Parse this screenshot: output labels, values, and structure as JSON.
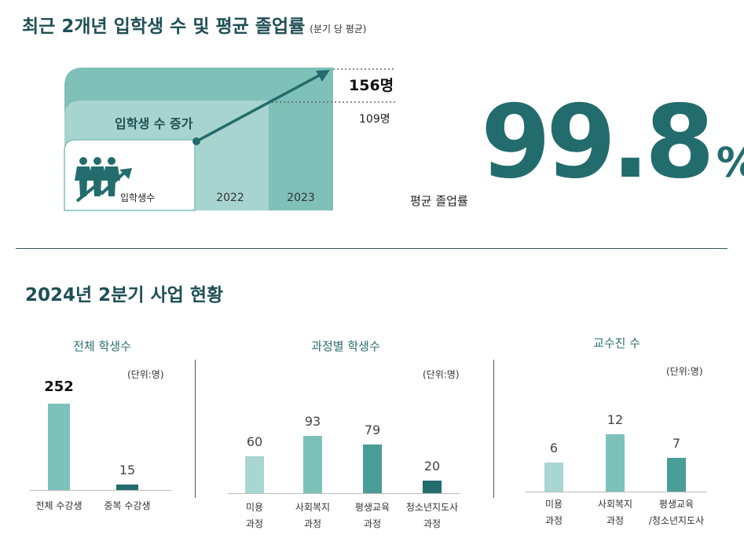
{
  "header": {
    "title": "최근 2개년 입학생 수 및 평균 졸업률",
    "subtitle": "(분기 당 평균)"
  },
  "enrollment": {
    "increase_label": "입학생 수 증가",
    "icon_label": "입학생수",
    "years": [
      "2022",
      "2023"
    ],
    "values": [
      "109명",
      "156명"
    ],
    "chart_data": {
      "type": "area",
      "categories": [
        "2022",
        "2023"
      ],
      "values": [
        109,
        156
      ],
      "title": "입학생 수 증가"
    }
  },
  "graduation": {
    "label": "평균 졸업률",
    "value": "99.8",
    "unit": "%"
  },
  "section2": {
    "title": "2024년 2분기 사업 현황"
  },
  "colors": {
    "light": "#a9d6d2",
    "mid": "#7cc2bb",
    "dark": "#4a9e97",
    "darkest": "#236c6d"
  },
  "panels": [
    {
      "title": "전체 학생수",
      "unit": "(단위:명)",
      "chart_data": {
        "type": "bar",
        "categories": [
          "전체 수강생",
          "중복 수강생"
        ],
        "values": [
          252,
          15
        ],
        "ylim": [
          0,
          252
        ]
      }
    },
    {
      "title": "과정별 학생수",
      "unit": "(단위:명)",
      "chart_data": {
        "type": "bar",
        "categories": [
          "미용\n과정",
          "사회복지\n과정",
          "평생교육\n과정",
          "청소년지도사\n과정"
        ],
        "values": [
          60,
          93,
          79,
          20
        ],
        "ylim": [
          0,
          150
        ]
      }
    },
    {
      "title": "교수진 수",
      "unit": "(단위:명)",
      "chart_data": {
        "type": "bar",
        "categories": [
          "미용\n과정",
          "사회복지\n과정",
          "평생교육\n/청소년지도사"
        ],
        "values": [
          6,
          12,
          7
        ],
        "ylim": [
          0,
          17
        ]
      }
    }
  ]
}
